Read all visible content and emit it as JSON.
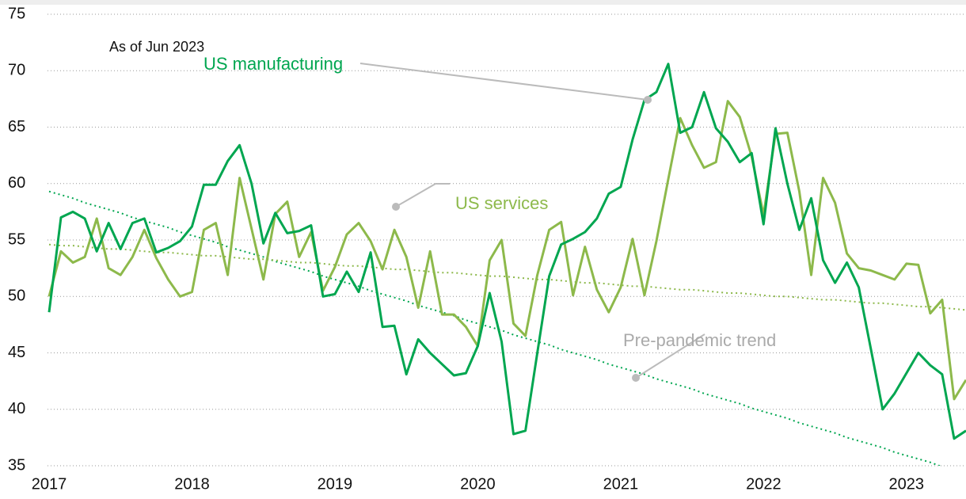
{
  "chart_data": {
    "type": "line",
    "subtitle": "As of Jun 2023",
    "categories": [
      "2017",
      null,
      null,
      null,
      null,
      null,
      null,
      null,
      null,
      null,
      null,
      null,
      "2018",
      null,
      null,
      null,
      null,
      null,
      null,
      null,
      null,
      null,
      null,
      null,
      "2019",
      null,
      null,
      null,
      null,
      null,
      null,
      null,
      null,
      null,
      null,
      null,
      "2020",
      null,
      null,
      null,
      null,
      null,
      null,
      null,
      null,
      null,
      null,
      null,
      "2021",
      null,
      null,
      null,
      null,
      null,
      null,
      null,
      null,
      null,
      null,
      null,
      "2022",
      null,
      null,
      null,
      null,
      null,
      null,
      null,
      null,
      null,
      null,
      null,
      "2023",
      null,
      null,
      null,
      null,
      null
    ],
    "series": [
      {
        "name": "US manufacturing",
        "color": "#00a650",
        "values": [
          48.6,
          57,
          57.5,
          56.9,
          54,
          56.5,
          54.2,
          56.5,
          56.9,
          53.9,
          54.3,
          54.9,
          56.2,
          59.9,
          59.9,
          62,
          63.4,
          60,
          54.7,
          57.4,
          55.6,
          55.8,
          56.3,
          50,
          50.2,
          52.2,
          50.4,
          53.9,
          47.3,
          47.4,
          43.1,
          46.2,
          45,
          44,
          43,
          43.2,
          45.6,
          50.3,
          46,
          37.8,
          38.1,
          45,
          51.8,
          54.6,
          55.1,
          55.7,
          56.9,
          59.1,
          59.7,
          63.9,
          67.4,
          68.1,
          70.6,
          64.5,
          65,
          68.1,
          64.9,
          63.7,
          61.9,
          62.7,
          56.4,
          64.9,
          60,
          55.9,
          58.7,
          53.2,
          51.2,
          53,
          50.8,
          45.4,
          40,
          41.4,
          43.2,
          45,
          43.9,
          43.1,
          37.4,
          38.1
        ]
      },
      {
        "name": "US services",
        "color": "#8db94b",
        "values": [
          50,
          54,
          53,
          53.5,
          56.9,
          52.5,
          51.9,
          53.5,
          55.9,
          53.4,
          51.5,
          50,
          50.4,
          55.9,
          56.5,
          51.9,
          60.5,
          56,
          51.5,
          57.3,
          58.4,
          53.5,
          55.7,
          50.5,
          52.6,
          55.5,
          56.5,
          54.9,
          52.4,
          55.9,
          53.5,
          49,
          54,
          48.4,
          48.4,
          47.3,
          45.6,
          53.2,
          55,
          47.6,
          46.5,
          51.9,
          55.9,
          56.6,
          50.1,
          54.4,
          50.6,
          48.6,
          50.8,
          55.1,
          50.1,
          54.9,
          60.4,
          65.8,
          63.4,
          61.4,
          61.9,
          67.3,
          65.9,
          62.4,
          57.2,
          64.4,
          64.5,
          59.3,
          51.9,
          60.5,
          58.3,
          53.8,
          52.5,
          52.3,
          51.9,
          51.5,
          52.9,
          52.8,
          48.5,
          49.7,
          40.9,
          42.6
        ]
      }
    ],
    "trend_label": "Pre-pandemic trend",
    "trends": [
      {
        "color": "#00a650",
        "values": [
          59.3,
          59.0,
          58.7,
          58.3,
          58.0,
          57.7,
          57.4,
          57.0,
          56.7,
          56.4,
          56.1,
          55.7,
          55.4,
          55.1,
          54.8,
          54.4,
          54.1,
          53.8,
          53.5,
          53.1,
          52.8,
          52.5,
          52.2,
          51.8,
          51.5,
          51.2,
          50.9,
          50.5,
          50.2,
          49.9,
          49.6,
          49.2,
          48.9,
          48.6,
          48.3,
          47.9,
          47.6,
          47.3,
          47.0,
          46.6,
          46.3,
          46.0,
          45.7,
          45.3,
          45.0,
          44.7,
          44.4,
          44.0,
          43.7,
          43.4,
          43.1,
          42.7,
          42.4,
          42.1,
          41.8,
          41.4,
          41.1,
          40.8,
          40.5,
          40.1,
          39.8,
          39.5,
          39.2,
          38.8,
          38.5,
          38.2,
          37.9,
          37.5,
          37.2,
          36.9,
          36.6,
          36.2,
          35.9,
          35.6,
          35.3,
          34.9,
          34.6,
          34.3
        ]
      },
      {
        "color": "#8db94b",
        "values": [
          54.6,
          54.5,
          54.5,
          54.4,
          54.3,
          54.2,
          54.2,
          54.1,
          54.0,
          53.9,
          53.9,
          53.8,
          53.7,
          53.6,
          53.6,
          53.5,
          53.4,
          53.3,
          53.3,
          53.2,
          53.1,
          53.0,
          53.0,
          52.9,
          52.8,
          52.7,
          52.7,
          52.6,
          52.5,
          52.4,
          52.4,
          52.3,
          52.2,
          52.1,
          52.1,
          52.0,
          51.9,
          51.8,
          51.8,
          51.7,
          51.6,
          51.5,
          51.5,
          51.4,
          51.3,
          51.2,
          51.2,
          51.1,
          51.0,
          50.9,
          50.9,
          50.8,
          50.7,
          50.6,
          50.6,
          50.5,
          50.4,
          50.3,
          50.3,
          50.2,
          50.1,
          50.0,
          50.0,
          49.9,
          49.8,
          49.7,
          49.7,
          49.6,
          49.5,
          49.4,
          49.4,
          49.3,
          49.2,
          49.1,
          49.1,
          49.0,
          48.9,
          48.8
        ]
      }
    ],
    "ylim": [
      35,
      75
    ],
    "yticks": [
      35,
      40,
      45,
      50,
      55,
      60,
      65,
      70,
      75
    ],
    "grid": true
  }
}
